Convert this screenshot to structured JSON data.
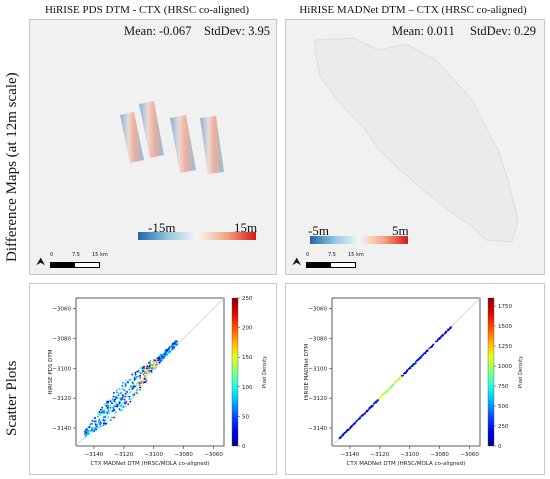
{
  "columns": [
    {
      "title": "HiRISE PDS DTM - CTX (HRSC co-aligned)"
    },
    {
      "title": "HiRISE MADNet DTM – CTX (HRSC co-aligned)"
    }
  ],
  "rows": [
    {
      "label": "Difference Maps (at 12m scale)"
    },
    {
      "label": "Scatter Plots"
    }
  ],
  "difference_maps": [
    {
      "mean_label": "Mean: -0.067",
      "std_label": "StdDev: 3.95",
      "colorbar": {
        "min_label": "-15m",
        "max_label": "15m",
        "low_color": "#2166ac",
        "mid_color": "#f7f7f7",
        "high_color": "#d7191c"
      },
      "scalebar": {
        "ticks": [
          "0",
          "7.5",
          "15 km"
        ]
      }
    },
    {
      "mean_label": "Mean: 0.011",
      "std_label": "StdDev: 0.29",
      "colorbar": {
        "min_label": "-5m",
        "max_label": "5m",
        "low_color": "#2166ac",
        "mid_color": "#f7f7f7",
        "high_color": "#d7191c"
      },
      "scalebar": {
        "ticks": [
          "0",
          "7.5",
          "15 km"
        ]
      }
    }
  ],
  "chart_data": [
    {
      "type": "scatter",
      "xlabel": "CTX MADNet DTM (HRSC/MOLA co-aligned)",
      "ylabel": "HiRISE PDS DTM",
      "x_ticks": [
        -3140,
        -3120,
        -3100,
        -3080,
        -3060
      ],
      "y_ticks": [
        -3140,
        -3120,
        -3100,
        -3080,
        -3060
      ],
      "xlim": [
        -3152,
        -3053
      ],
      "ylim": [
        -3152,
        -3053
      ],
      "colorbar_label": "Pixel Density",
      "colorbar_ticks": [
        0,
        50,
        100,
        150,
        200,
        250
      ],
      "colorbar_range": [
        0,
        250
      ],
      "colormap": "jet",
      "identity_line": true
    },
    {
      "type": "scatter",
      "xlabel": "CTX MADNet DTM (HRSC/MOLA co-aligned)",
      "ylabel": "HiRISE MADNet DTM",
      "x_ticks": [
        -3140,
        -3120,
        -3100,
        -3080,
        -3060
      ],
      "y_ticks": [
        -3140,
        -3120,
        -3100,
        -3080,
        -3060
      ],
      "xlim": [
        -3152,
        -3053
      ],
      "ylim": [
        -3152,
        -3053
      ],
      "colorbar_label": "Pixel Density",
      "colorbar_ticks": [
        0,
        250,
        500,
        750,
        1000,
        1250,
        1500,
        1750
      ],
      "colorbar_range": [
        0,
        1850
      ],
      "colormap": "jet",
      "identity_line": true
    }
  ]
}
